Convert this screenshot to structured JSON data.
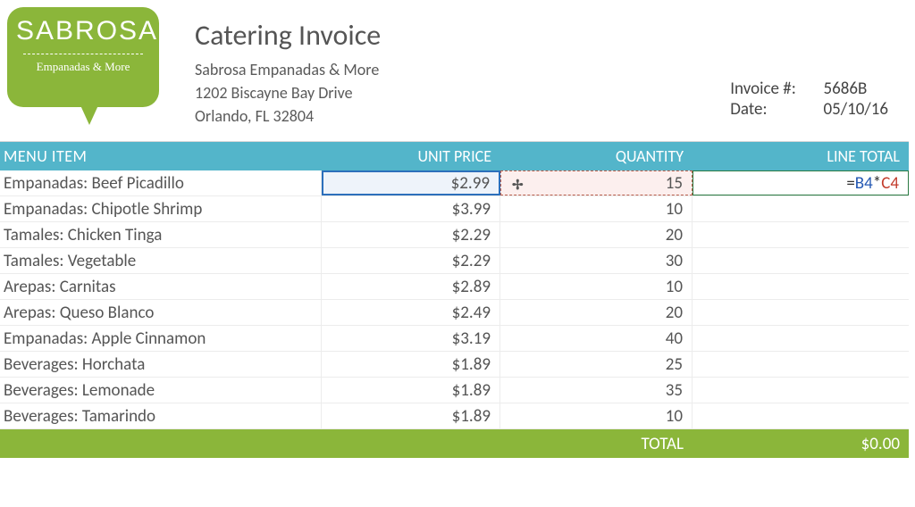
{
  "logo": {
    "main": "SABROSA",
    "sub": "Empanadas & More",
    "bg_color": "#8bb63a",
    "text_color": "#ffffff"
  },
  "doc": {
    "title": "Catering Invoice",
    "company": "Sabrosa Empanadas & More",
    "address1": "1202 Biscayne Bay Drive",
    "address2": "Orlando, FL 32804"
  },
  "meta": {
    "invoice_label": "Invoice #:",
    "invoice_number": "5686B",
    "date_label": "Date:",
    "date": "05/10/16"
  },
  "columns": {
    "c1": "MENU ITEM",
    "c2": "UNIT PRICE",
    "c3": "QUANTITY",
    "c4": "LINE TOTAL"
  },
  "rows": [
    {
      "item": "Empanadas: Beef Picadillo",
      "price": "$2.99",
      "qty": "15",
      "total": ""
    },
    {
      "item": "Empanadas: Chipotle Shrimp",
      "price": "$3.99",
      "qty": "10",
      "total": ""
    },
    {
      "item": "Tamales: Chicken Tinga",
      "price": "$2.29",
      "qty": "20",
      "total": ""
    },
    {
      "item": "Tamales: Vegetable",
      "price": "$2.29",
      "qty": "30",
      "total": ""
    },
    {
      "item": "Arepas: Carnitas",
      "price": "$2.89",
      "qty": "10",
      "total": ""
    },
    {
      "item": "Arepas: Queso Blanco",
      "price": "$2.49",
      "qty": "20",
      "total": ""
    },
    {
      "item": "Empanadas: Apple Cinnamon",
      "price": "$3.19",
      "qty": "40",
      "total": ""
    },
    {
      "item": "Beverages: Horchata",
      "price": "$1.89",
      "qty": "25",
      "total": ""
    },
    {
      "item": "Beverages: Lemonade",
      "price": "$1.89",
      "qty": "35",
      "total": ""
    },
    {
      "item": "Beverages: Tamarindo",
      "price": "$1.89",
      "qty": "10",
      "total": ""
    }
  ],
  "formula": {
    "prefix": "=",
    "ref1": "B4",
    "op": "*",
    "ref2": "C4"
  },
  "totals": {
    "label": "TOTAL",
    "value": "$0.00"
  },
  "colors": {
    "header_row": "#53b5ca",
    "total_row": "#8bb63a",
    "sel_blue": "#2c6fbb",
    "sel_red": "#b85c4a",
    "sel_green": "#2a7a42",
    "grid": "#ececec"
  }
}
